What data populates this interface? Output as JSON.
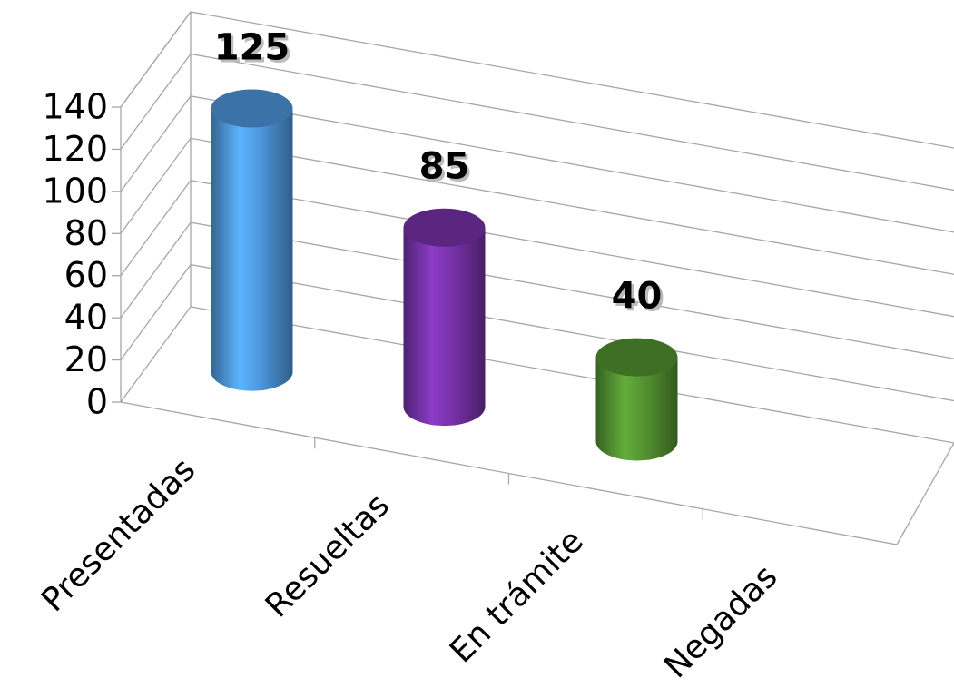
{
  "chart_data": {
    "type": "bar3d",
    "categories": [
      "Presentadas",
      "Resueltas",
      "En trámite",
      "Negadas"
    ],
    "values": [
      125,
      85,
      40,
      null
    ],
    "colors": [
      "#4a90d2",
      "#7030a0",
      "#4f8a2e",
      "#888888"
    ],
    "ylim": [
      0,
      140
    ],
    "yticks": [
      0,
      20,
      40,
      60,
      80,
      100,
      120,
      140
    ],
    "grid": true
  }
}
